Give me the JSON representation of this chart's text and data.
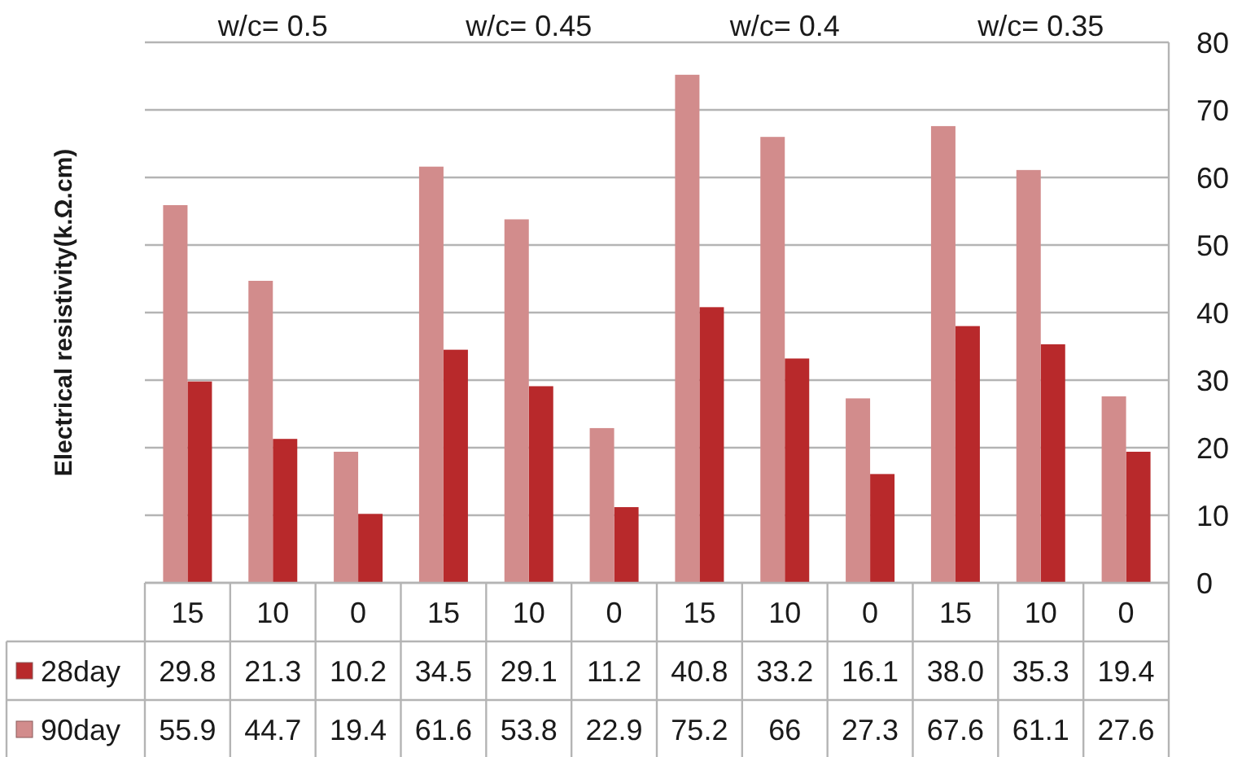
{
  "chart_data": {
    "type": "bar",
    "ylabel": "Electrical resistivity(k.Ω.cm)",
    "annotations": [
      "w/c= 0.5",
      "w/c= 0.45",
      "w/c= 0.4",
      "w/c= 0.35"
    ],
    "categories": [
      "15",
      "10",
      "0",
      "15",
      "10",
      "0",
      "15",
      "10",
      "0",
      "15",
      "10",
      "0"
    ],
    "series": [
      {
        "name": "28day",
        "color": "#b8292b",
        "values": [
          29.8,
          21.3,
          10.2,
          34.5,
          29.1,
          11.2,
          40.8,
          33.2,
          16.1,
          38.0,
          35.3,
          19.4
        ],
        "value_labels": [
          "29.8",
          "21.3",
          "10.2",
          "34.5",
          "29.1",
          "11.2",
          "40.8",
          "33.2",
          "16.1",
          "38.0",
          "35.3",
          "19.4"
        ]
      },
      {
        "name": "90day",
        "color": "#d28c8c",
        "values": [
          55.9,
          44.7,
          19.4,
          61.6,
          53.8,
          22.9,
          75.2,
          66,
          27.3,
          67.6,
          61.1,
          27.6
        ],
        "value_labels": [
          "55.9",
          "44.7",
          "19.4",
          "61.6",
          "53.8",
          "22.9",
          "75.2",
          "66",
          "27.3",
          "67.6",
          "61.1",
          "27.6"
        ]
      }
    ],
    "ylim": [
      0,
      80
    ],
    "yticks": [
      0,
      10,
      20,
      30,
      40,
      50,
      60,
      70,
      80
    ],
    "grid": "y",
    "legend": "bottom"
  }
}
